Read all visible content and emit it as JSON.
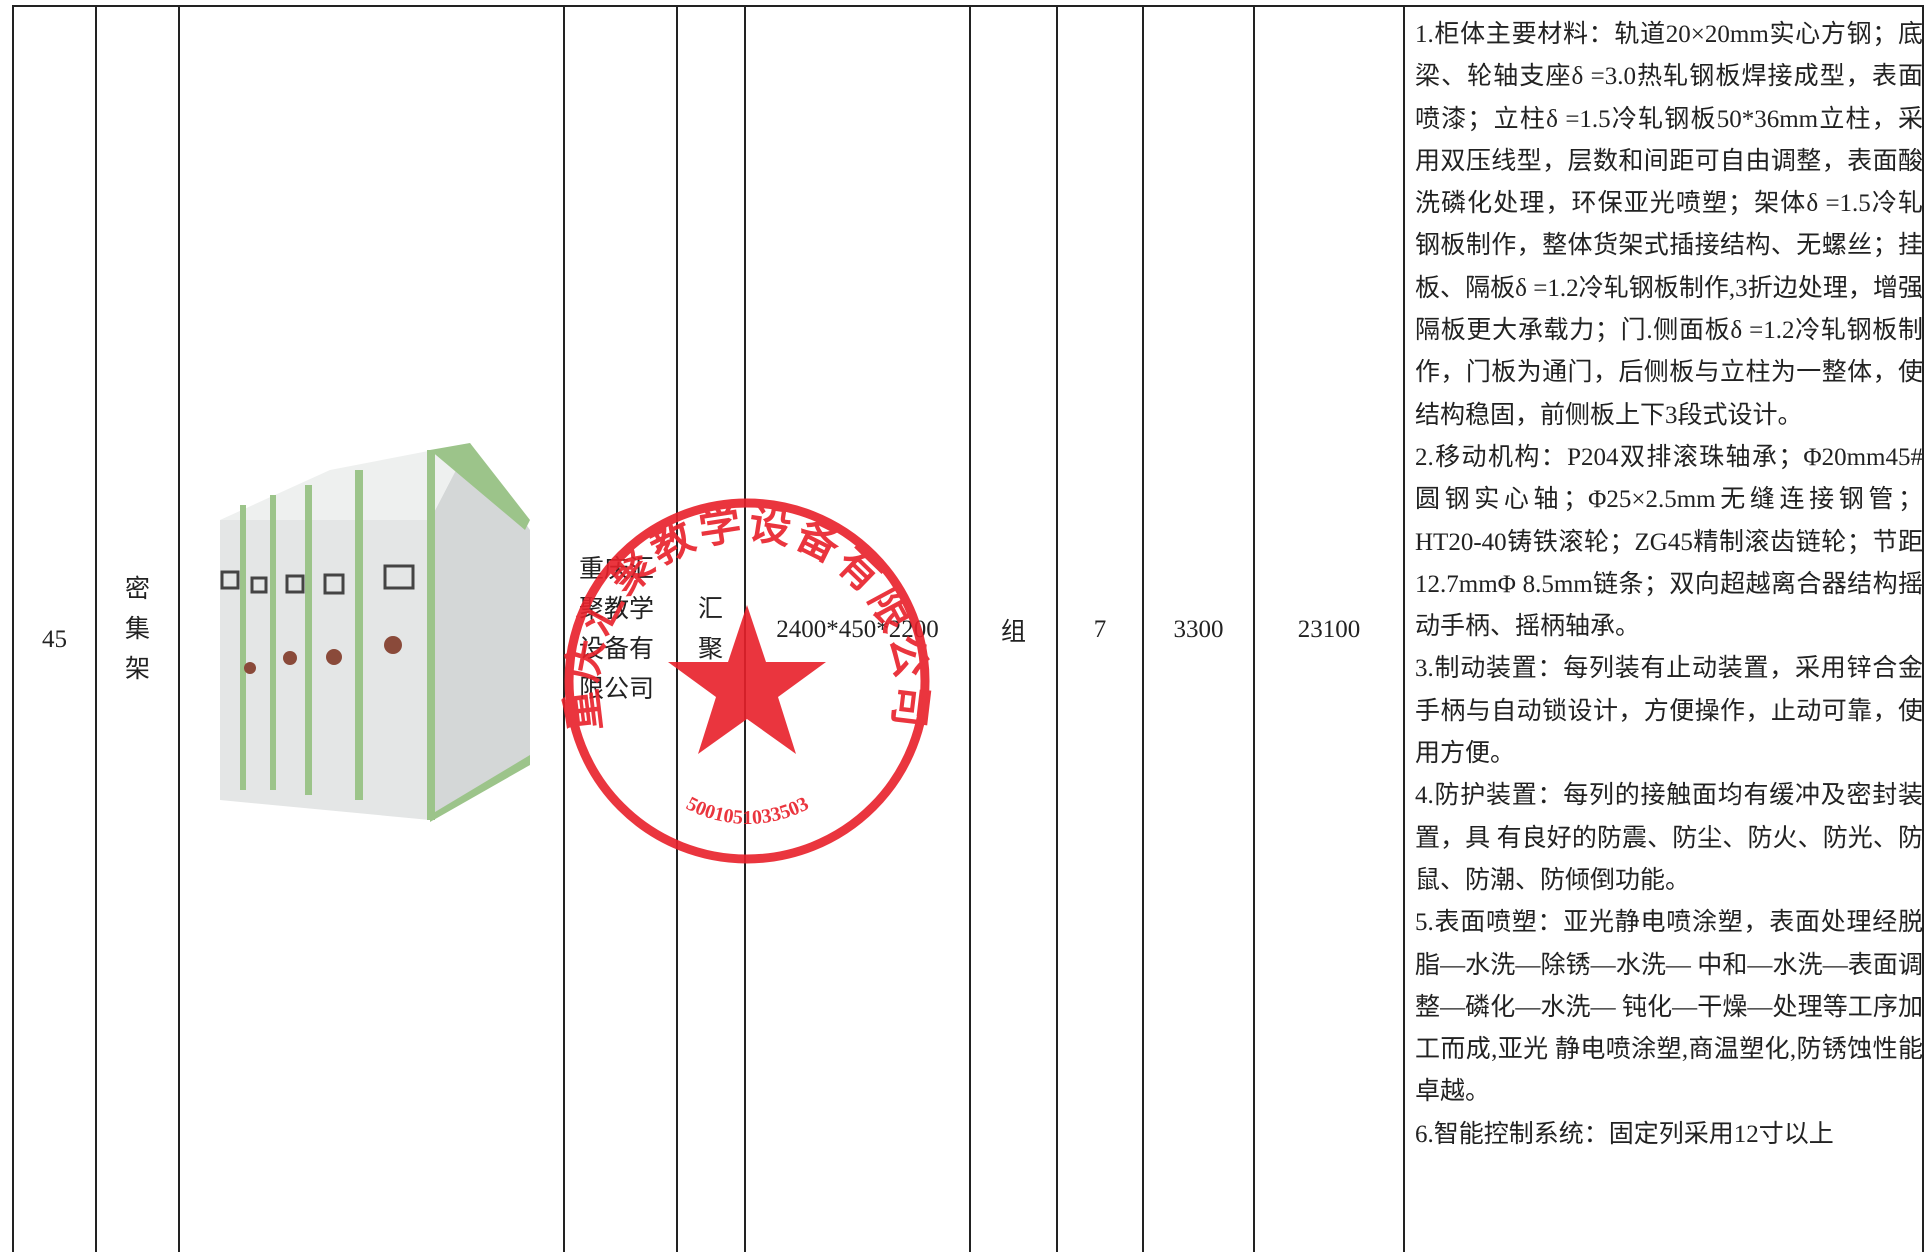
{
  "table": {
    "rows": [
      {
        "index": 45,
        "name": "密集架",
        "supplier": "重庆汇聚教学设备有限公司",
        "brand": "汇聚",
        "spec": "2400*450*2200",
        "unit": "组",
        "quantity": 7,
        "unit_price": 3300,
        "total": 23100,
        "description": [
          "1.柜体主要材料：轨道20×20mm实心方钢；底梁、轮轴支座δ =3.0热轧钢板焊接成型，表面喷漆；立柱δ =1.5冷轧钢板50*36mm立柱，采用双压线型，层数和间距可自由调整，表面酸洗磷化处理，环保亚光喷塑；架体δ =1.5冷轧钢板制作，整体货架式插接结构、无螺丝；挂板、隔板δ =1.2冷轧钢板制作,3折边处理，增强隔板更大承载力；门.侧面板δ =1.2冷轧钢板制作，门板为通门，后侧板与立柱为一整体，使结构稳固，前侧板上下3段式设计。",
          "2.移动机构：P204双排滚珠轴承；Φ20mm45#圆钢实心轴；Φ25×2.5mm无缝连接钢管；HT20-40铸铁滚轮；ZG45精制滚齿链轮；节距12.7mmΦ 8.5mm链条；双向超越离合器结构摇动手柄、摇柄轴承。",
          "3.制动装置：每列装有止动装置，采用锌合金手柄与自动锁设计，方便操作，止动可靠，使用方便。",
          "4.防护装置：每列的接触面均有缓冲及密封装置，具 有良好的防震、防尘、防火、防光、防鼠、防潮、防倾倒功能。",
          "5.表面喷塑：亚光静电喷涂塑，表面处理经脱脂—水洗—除锈—水洗— 中和—水洗—表面调整—磷化—水洗— 钝化—干燥—处理等工序加工而成,亚光 静电喷涂塑,商温塑化,防锈蚀性能卓越。",
          "6.智能控制系统：固定列采用12寸以上"
        ]
      }
    ]
  },
  "stamp": {
    "name": "重庆汇聚教学设备有限公司",
    "code": "5001051033503"
  }
}
